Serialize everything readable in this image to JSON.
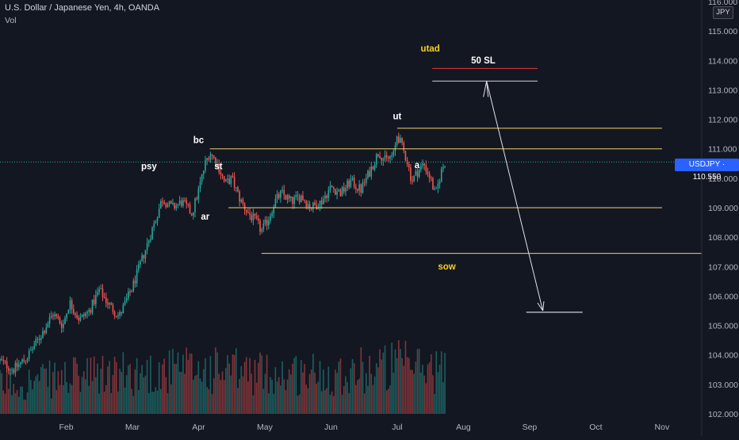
{
  "header": {
    "symbol_line": "U.S. Dollar / Japanese Yen, 4h, OANDA",
    "indicator": "Vol",
    "currency_box": "JPY",
    "price_badge": "USDJPY · 110.550"
  },
  "colors": {
    "background": "#131722",
    "up": "#26a69a",
    "down": "#ef5350",
    "level_line": "#f0d264",
    "annotation_yellow": "#f5d020",
    "text": "#d1d4dc",
    "axis_text": "#b2b5be",
    "badge": "#2962ff"
  },
  "chart_data": {
    "type": "candlestick",
    "title": "",
    "xlabel": "",
    "ylabel": "",
    "y_tick_labels": [
      "102.000",
      "103.000",
      "104.000",
      "105.000",
      "106.000",
      "107.000",
      "108.000",
      "109.000",
      "110.000",
      "111.000",
      "112.000",
      "113.000",
      "114.000",
      "115.000",
      "116.000"
    ],
    "ylim": [
      102.0,
      116.0
    ],
    "x_tick_labels": [
      "Feb",
      "Mar",
      "Apr",
      "May",
      "Jun",
      "Jul",
      "Aug",
      "Sep",
      "Oct",
      "Nov"
    ],
    "x_ticks_month": [
      2,
      3,
      4,
      5,
      6,
      7,
      8,
      9,
      10,
      11
    ],
    "xlim_month": [
      1.0,
      11.6
    ],
    "last_price": 110.55,
    "price_path": [
      {
        "m": 1.0,
        "p": 103.8
      },
      {
        "m": 1.2,
        "p": 103.5
      },
      {
        "m": 1.4,
        "p": 103.9
      },
      {
        "m": 1.6,
        "p": 104.6
      },
      {
        "m": 1.8,
        "p": 105.4
      },
      {
        "m": 1.95,
        "p": 105.0
      },
      {
        "m": 2.05,
        "p": 105.8
      },
      {
        "m": 2.2,
        "p": 105.2
      },
      {
        "m": 2.35,
        "p": 105.5
      },
      {
        "m": 2.5,
        "p": 106.2
      },
      {
        "m": 2.65,
        "p": 105.7
      },
      {
        "m": 2.8,
        "p": 105.3
      },
      {
        "m": 3.0,
        "p": 106.3
      },
      {
        "m": 3.2,
        "p": 107.6
      },
      {
        "m": 3.35,
        "p": 108.6
      },
      {
        "m": 3.45,
        "p": 109.3
      },
      {
        "m": 3.6,
        "p": 109.0
      },
      {
        "m": 3.75,
        "p": 109.2
      },
      {
        "m": 3.9,
        "p": 108.8
      },
      {
        "m": 4.0,
        "p": 109.6
      },
      {
        "m": 4.1,
        "p": 110.5
      },
      {
        "m": 4.17,
        "p": 110.9
      },
      {
        "m": 4.3,
        "p": 110.4
      },
      {
        "m": 4.4,
        "p": 109.8
      },
      {
        "m": 4.5,
        "p": 110.0
      },
      {
        "m": 4.62,
        "p": 109.3
      },
      {
        "m": 4.75,
        "p": 108.8
      },
      {
        "m": 4.88,
        "p": 108.5
      },
      {
        "m": 4.95,
        "p": 108.2
      },
      {
        "m": 5.05,
        "p": 108.6
      },
      {
        "m": 5.15,
        "p": 109.2
      },
      {
        "m": 5.25,
        "p": 109.5
      },
      {
        "m": 5.4,
        "p": 109.2
      },
      {
        "m": 5.55,
        "p": 109.4
      },
      {
        "m": 5.7,
        "p": 109.0
      },
      {
        "m": 5.85,
        "p": 109.2
      },
      {
        "m": 6.0,
        "p": 109.7
      },
      {
        "m": 6.15,
        "p": 109.5
      },
      {
        "m": 6.3,
        "p": 109.9
      },
      {
        "m": 6.45,
        "p": 109.6
      },
      {
        "m": 6.6,
        "p": 110.3
      },
      {
        "m": 6.72,
        "p": 110.9
      },
      {
        "m": 6.82,
        "p": 110.6
      },
      {
        "m": 6.95,
        "p": 110.8
      },
      {
        "m": 7.0,
        "p": 111.5
      },
      {
        "m": 7.05,
        "p": 111.2
      },
      {
        "m": 7.15,
        "p": 110.6
      },
      {
        "m": 7.22,
        "p": 109.9
      },
      {
        "m": 7.3,
        "p": 110.2
      },
      {
        "m": 7.4,
        "p": 110.5
      },
      {
        "m": 7.5,
        "p": 110.0
      },
      {
        "m": 7.58,
        "p": 109.4
      },
      {
        "m": 7.66,
        "p": 110.2
      },
      {
        "m": 7.72,
        "p": 110.55
      }
    ],
    "volume_scale_max": 1.0,
    "volume_profile": [
      {
        "m": 1.0,
        "v": 0.35
      },
      {
        "m": 2.0,
        "v": 0.45
      },
      {
        "m": 3.0,
        "v": 0.5
      },
      {
        "m": 4.0,
        "v": 0.55
      },
      {
        "m": 5.0,
        "v": 0.5
      },
      {
        "m": 6.0,
        "v": 0.5
      },
      {
        "m": 7.0,
        "v": 0.6
      },
      {
        "m": 7.72,
        "v": 0.55
      }
    ],
    "levels": [
      {
        "y": 111.0,
        "x0": 4.17,
        "x1": 11.0,
        "color": "#f0d264"
      },
      {
        "y": 111.7,
        "x0": 7.0,
        "x1": 11.0,
        "color": "#f0d264"
      },
      {
        "y": 109.0,
        "x0": 4.45,
        "x1": 11.0,
        "color": "#f0d264"
      },
      {
        "y": 107.45,
        "x0": 4.95,
        "x1": 11.6,
        "color": "#f0d264"
      },
      {
        "y": 113.73,
        "x0": 7.53,
        "x1": 9.12,
        "color": "#e03a3a"
      },
      {
        "y": 113.3,
        "x0": 7.53,
        "x1": 9.12,
        "color": "#d1d4dc"
      },
      {
        "y": 105.45,
        "x0": 8.95,
        "x1": 9.8,
        "color": "#ffffff"
      }
    ],
    "projection": {
      "from": {
        "m": 8.35,
        "p": 113.3
      },
      "to": {
        "m": 9.2,
        "p": 105.5
      }
    },
    "annotations": [
      {
        "text": "bc",
        "m": 4.0,
        "p": 111.2,
        "color": "#ffffff"
      },
      {
        "text": "psy",
        "m": 3.25,
        "p": 110.3,
        "color": "#ffffff"
      },
      {
        "text": "st",
        "m": 4.3,
        "p": 110.3,
        "color": "#ffffff"
      },
      {
        "text": "ar",
        "m": 4.1,
        "p": 108.6,
        "color": "#ffffff"
      },
      {
        "text": "ut",
        "m": 7.0,
        "p": 112.0,
        "color": "#ffffff"
      },
      {
        "text": "utad",
        "m": 7.5,
        "p": 114.3,
        "color": "#f5d020"
      },
      {
        "text": "50 SL",
        "m": 8.3,
        "p": 113.9,
        "color": "#ffffff"
      },
      {
        "text": "sow",
        "m": 7.75,
        "p": 106.9,
        "color": "#f5d020"
      },
      {
        "text": "a",
        "m": 7.3,
        "p": 110.35,
        "color": "#ffffff"
      }
    ]
  }
}
